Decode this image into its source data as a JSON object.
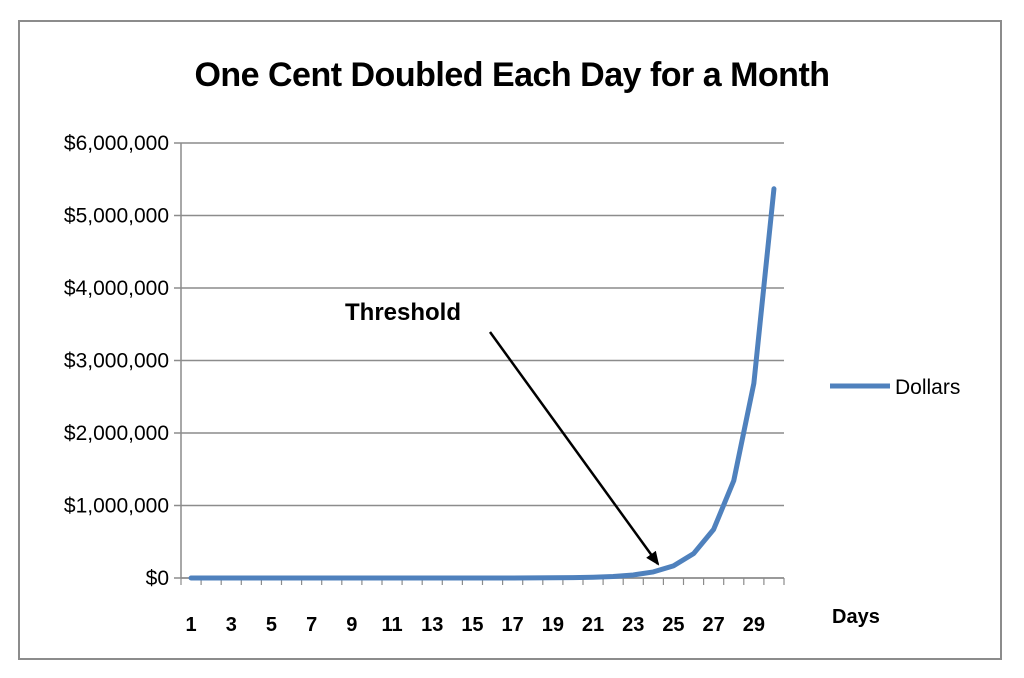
{
  "chart_data": {
    "type": "line",
    "title": "One Cent Doubled Each Day for a Month",
    "xlabel": "Days",
    "ylabel": "",
    "ylim": [
      0,
      6000000
    ],
    "y_ticks": [
      "$0",
      "$1,000,000",
      "$2,000,000",
      "$3,000,000",
      "$4,000,000",
      "$5,000,000",
      "$6,000,000"
    ],
    "y_tick_values": [
      0,
      1000000,
      2000000,
      3000000,
      4000000,
      5000000,
      6000000
    ],
    "x_tick_labels": [
      "1",
      "3",
      "5",
      "7",
      "9",
      "11",
      "13",
      "15",
      "17",
      "19",
      "21",
      "23",
      "25",
      "27",
      "29"
    ],
    "x": [
      1,
      2,
      3,
      4,
      5,
      6,
      7,
      8,
      9,
      10,
      11,
      12,
      13,
      14,
      15,
      16,
      17,
      18,
      19,
      20,
      21,
      22,
      23,
      24,
      25,
      26,
      27,
      28,
      29,
      30
    ],
    "series": [
      {
        "name": "Dollars",
        "color": "#4f81bd",
        "values": [
          0.01,
          0.02,
          0.04,
          0.08,
          0.16,
          0.32,
          0.64,
          1.28,
          2.56,
          5.12,
          10.24,
          20.48,
          40.96,
          81.92,
          163.84,
          327.68,
          655.36,
          1310.72,
          2621.44,
          5242.88,
          10485.76,
          20971.52,
          41943.04,
          83886.08,
          167772.16,
          335544.32,
          671088.64,
          1342177.28,
          2684354.56,
          5368709.12
        ]
      }
    ],
    "annotations": [
      {
        "text": "Threshold",
        "points_to_x": 24
      }
    ],
    "grid": true,
    "legend": "right"
  }
}
